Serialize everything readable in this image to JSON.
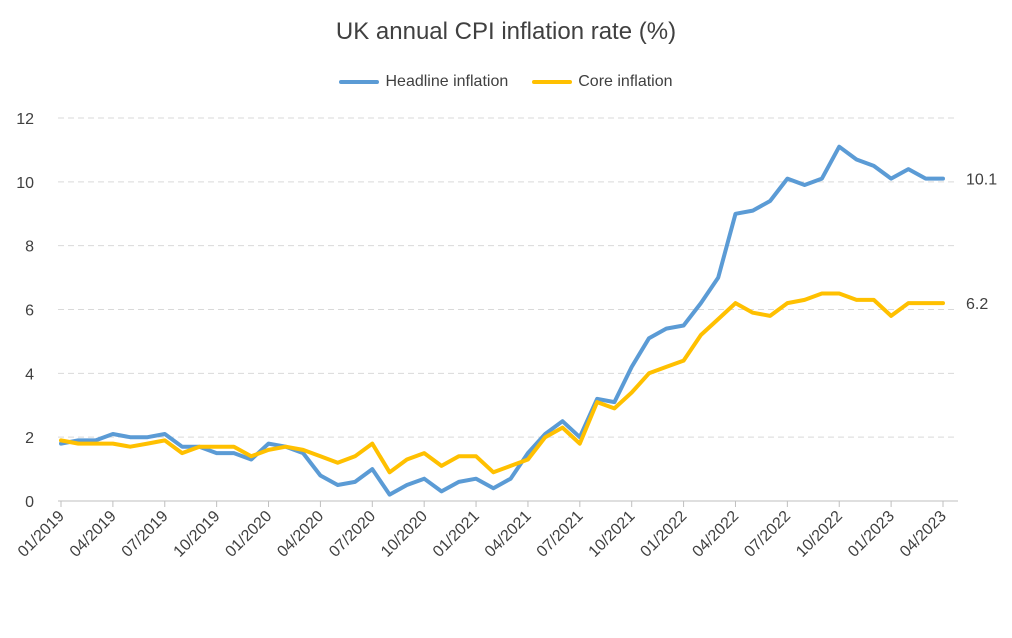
{
  "chart_data": {
    "type": "line",
    "title": "UK annual CPI inflation rate (%)",
    "xlabel": "",
    "ylabel": "",
    "ylim": [
      0,
      12
    ],
    "yticks": [
      0,
      2,
      4,
      6,
      8,
      10,
      12
    ],
    "grid": "horizontal dashed",
    "legend_position": "top-center",
    "x": [
      "01/2019",
      "02/2019",
      "03/2019",
      "04/2019",
      "05/2019",
      "06/2019",
      "07/2019",
      "08/2019",
      "09/2019",
      "10/2019",
      "11/2019",
      "12/2019",
      "01/2020",
      "02/2020",
      "03/2020",
      "04/2020",
      "05/2020",
      "06/2020",
      "07/2020",
      "08/2020",
      "09/2020",
      "10/2020",
      "11/2020",
      "12/2020",
      "01/2021",
      "02/2021",
      "03/2021",
      "04/2021",
      "05/2021",
      "06/2021",
      "07/2021",
      "08/2021",
      "09/2021",
      "10/2021",
      "11/2021",
      "12/2021",
      "01/2022",
      "02/2022",
      "03/2022",
      "04/2022",
      "05/2022",
      "06/2022",
      "07/2022",
      "08/2022",
      "09/2022",
      "10/2022",
      "11/2022",
      "12/2022",
      "01/2023",
      "02/2023",
      "03/2023",
      "04/2023"
    ],
    "xtick_labels": [
      "01/2019",
      "04/2019",
      "07/2019",
      "10/2019",
      "01/2020",
      "04/2020",
      "07/2020",
      "10/2020",
      "01/2021",
      "04/2021",
      "07/2021",
      "10/2021",
      "01/2022",
      "04/2022",
      "07/2022",
      "10/2022",
      "01/2023",
      "04/2023"
    ],
    "series": [
      {
        "name": "Headline inflation",
        "color": "#5b9bd5",
        "values": [
          1.8,
          1.9,
          1.9,
          2.1,
          2.0,
          2.0,
          2.1,
          1.7,
          1.7,
          1.5,
          1.5,
          1.3,
          1.8,
          1.7,
          1.5,
          0.8,
          0.5,
          0.6,
          1.0,
          0.2,
          0.5,
          0.7,
          0.3,
          0.6,
          0.7,
          0.4,
          0.7,
          1.5,
          2.1,
          2.5,
          2.0,
          3.2,
          3.1,
          4.2,
          5.1,
          5.4,
          5.5,
          6.2,
          7.0,
          9.0,
          9.1,
          9.4,
          10.1,
          9.9,
          10.1,
          11.1,
          10.7,
          10.5,
          10.1,
          10.4,
          10.1,
          10.1
        ],
        "end_label": "10.1"
      },
      {
        "name": "Core inflation",
        "color": "#ffc000",
        "values": [
          1.9,
          1.8,
          1.8,
          1.8,
          1.7,
          1.8,
          1.9,
          1.5,
          1.7,
          1.7,
          1.7,
          1.4,
          1.6,
          1.7,
          1.6,
          1.4,
          1.2,
          1.4,
          1.8,
          0.9,
          1.3,
          1.5,
          1.1,
          1.4,
          1.4,
          0.9,
          1.1,
          1.3,
          2.0,
          2.3,
          1.8,
          3.1,
          2.9,
          3.4,
          4.0,
          4.2,
          4.4,
          5.2,
          5.7,
          6.2,
          5.9,
          5.8,
          6.2,
          6.3,
          6.5,
          6.5,
          6.3,
          6.3,
          5.8,
          6.2,
          6.2,
          6.2
        ],
        "end_label": "6.2"
      }
    ]
  }
}
